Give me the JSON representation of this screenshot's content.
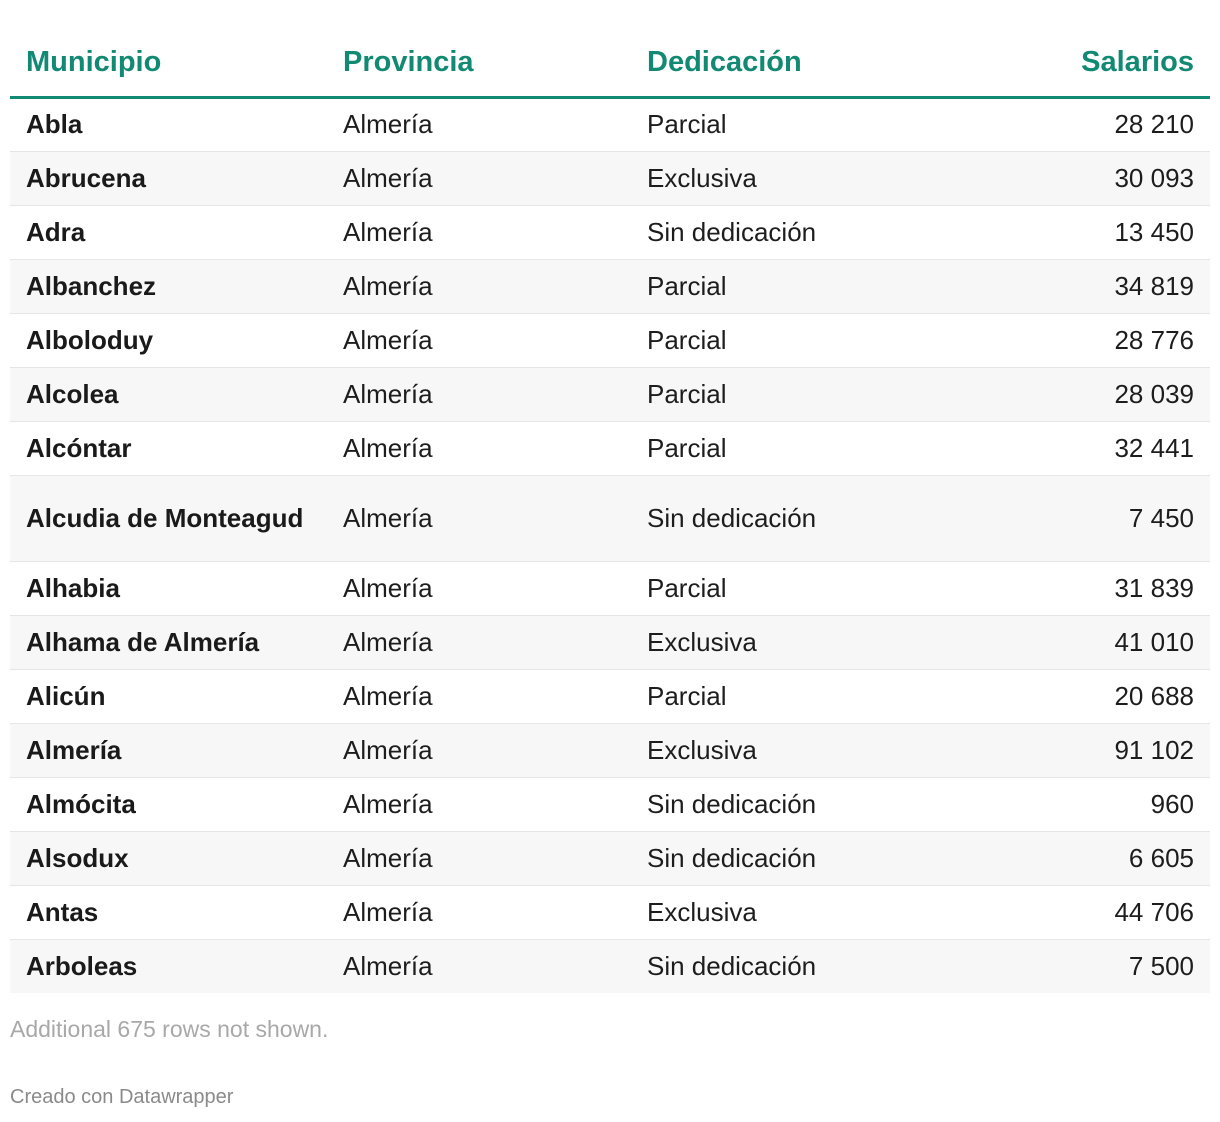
{
  "chart_data": {
    "type": "table",
    "columns": [
      "Municipio",
      "Provincia",
      "Dedicación",
      "Salarios"
    ],
    "rows": [
      [
        "Abla",
        "Almería",
        "Parcial",
        "28 210"
      ],
      [
        "Abrucena",
        "Almería",
        "Exclusiva",
        "30 093"
      ],
      [
        "Adra",
        "Almería",
        "Sin dedicación",
        "13 450"
      ],
      [
        "Albanchez",
        "Almería",
        "Parcial",
        "34 819"
      ],
      [
        "Alboloduy",
        "Almería",
        "Parcial",
        "28 776"
      ],
      [
        "Alcolea",
        "Almería",
        "Parcial",
        "28 039"
      ],
      [
        "Alcóntar",
        "Almería",
        "Parcial",
        "32 441"
      ],
      [
        "Alcudia de Monteagud",
        "Almería",
        "Sin dedicación",
        "7 450"
      ],
      [
        "Alhabia",
        "Almería",
        "Parcial",
        "31 839"
      ],
      [
        "Alhama de Almería",
        "Almería",
        "Exclusiva",
        "41 010"
      ],
      [
        "Alicún",
        "Almería",
        "Parcial",
        "20 688"
      ],
      [
        "Almería",
        "Almería",
        "Exclusiva",
        "91 102"
      ],
      [
        "Almócita",
        "Almería",
        "Sin dedicación",
        "960"
      ],
      [
        "Alsodux",
        "Almería",
        "Sin dedicación",
        "6 605"
      ],
      [
        "Antas",
        "Almería",
        "Exclusiva",
        "44 706"
      ],
      [
        "Arboleas",
        "Almería",
        "Sin dedicación",
        "7 500"
      ]
    ],
    "accent_color": "#128a73"
  },
  "footer": {
    "note": "Additional 675 rows not shown.",
    "credit": "Creado con Datawrapper"
  }
}
